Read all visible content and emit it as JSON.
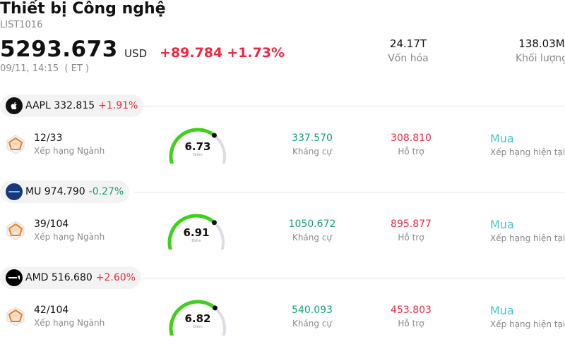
{
  "header": {
    "title": "Thiết bị Công nghệ",
    "code": "LIST1016",
    "price": "5293.673",
    "currency": "USD",
    "change_abs": "+89.784",
    "change_pct": "+1.73%",
    "datetime": "09/11, 14:15  ( ET )"
  },
  "stats": [
    {
      "value": "24.17T",
      "label": "Vốn hóa"
    },
    {
      "value": "138.03M",
      "label": "Khối lượng"
    }
  ],
  "stocks": [
    {
      "ticker": "AAPL 332.815",
      "change": "+1.91%",
      "direction": "up",
      "logo": "apple-logo",
      "rank": "12/33",
      "rank_label": "Xếp hạng Ngành",
      "score": "6.73",
      "score_fraction": 0.673,
      "score_sub": "Điểm",
      "resistance": "337.570",
      "resistance_label": "Kháng cự",
      "support": "308.810",
      "support_label": "Hỗ trợ",
      "rating": "Mua",
      "rating_label": "Xếp hạng hiện tại"
    },
    {
      "ticker": "MU 974.790",
      "change": "-0.27%",
      "direction": "down",
      "logo": "micron-logo",
      "rank": "39/104",
      "rank_label": "Xếp hạng Ngành",
      "score": "6.91",
      "score_fraction": 0.691,
      "score_sub": "Điểm",
      "resistance": "1050.672",
      "resistance_label": "Kháng cự",
      "support": "895.877",
      "support_label": "Hỗ trợ",
      "rating": "Mua",
      "rating_label": "Xếp hạng hiện tại"
    },
    {
      "ticker": "AMD 516.680",
      "change": "+2.60%",
      "direction": "up",
      "logo": "amd-logo",
      "rank": "42/104",
      "rank_label": "Xếp hạng Ngành",
      "score": "6.82",
      "score_fraction": 0.682,
      "score_sub": "Điểm",
      "resistance": "540.093",
      "resistance_label": "Kháng cự",
      "support": "453.803",
      "support_label": "Hỗ trợ",
      "rating": "Mua",
      "rating_label": "Xếp hạng hiện tại"
    }
  ],
  "colors": {
    "up": "#f0283f",
    "down": "#12a07a",
    "gauge_fill": "#3fd11a",
    "gauge_track": "#dcdde4",
    "rating": "#3ec8c0"
  }
}
